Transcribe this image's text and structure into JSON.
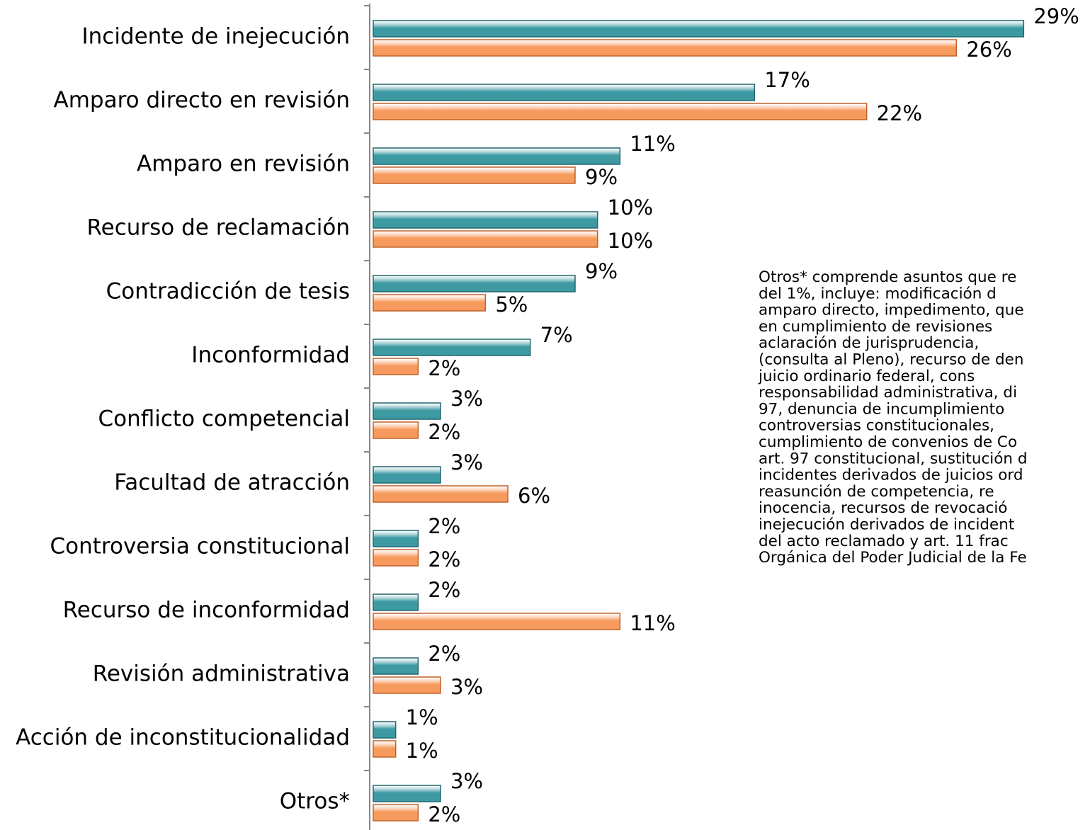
{
  "chart_data": {
    "type": "hbar",
    "categories": [
      "Incidente de inejecución",
      "Amparo directo en revisión",
      "Amparo en revisión",
      "Recurso de reclamación",
      "Contradicción de tesis",
      "Inconformidad",
      "Conflicto competencial",
      "Facultad de atracción",
      "Controversia constitucional",
      "Recurso de inconformidad",
      "Revisión administrativa",
      "Acción de inconstitucionalidad",
      "Otros*"
    ],
    "series": [
      {
        "color": "#3d9aa3",
        "values": [
          29,
          17,
          11,
          10,
          9,
          7,
          3,
          3,
          2,
          2,
          2,
          1,
          3
        ],
        "value_labels": [
          "29%",
          "17%",
          "11%",
          "10%",
          "9%",
          "7%",
          "3%",
          "3%",
          "2%",
          "2%",
          "2%",
          "1%",
          "3%"
        ]
      },
      {
        "color": "#f79a5e",
        "values": [
          26,
          22,
          9,
          10,
          5,
          2,
          2,
          6,
          2,
          11,
          3,
          1,
          2
        ],
        "value_labels": [
          "26%",
          "22%",
          "9%",
          "10%",
          "5%",
          "2%",
          "2%",
          "6%",
          "2%",
          "11%",
          "3%",
          "1%",
          "2%"
        ]
      }
    ],
    "xlim": [
      0,
      30
    ],
    "annotation": [
      "Otros* comprende asuntos que re",
      "del 1%, incluye: modificación d",
      "amparo directo, impedimento, que",
      "en cumplimiento de revisiones",
      "aclaración de jurisprudencia,",
      "(consulta al Pleno), recurso de den",
      "juicio ordinario federal, cons",
      "responsabilidad administrativa, di",
      "97, denuncia de incumplimiento",
      "controversias constitucionales,",
      "cumplimiento de convenios de Co",
      "art. 97 constitucional, sustitución d",
      "incidentes derivados de juicios ord",
      "reasunción de competencia, re",
      "inocencia, recursos de revocació",
      "inejecución derivados de incident",
      "del acto reclamado y art. 11 frac",
      "Orgánica del Poder Judicial de la Fe"
    ]
  }
}
